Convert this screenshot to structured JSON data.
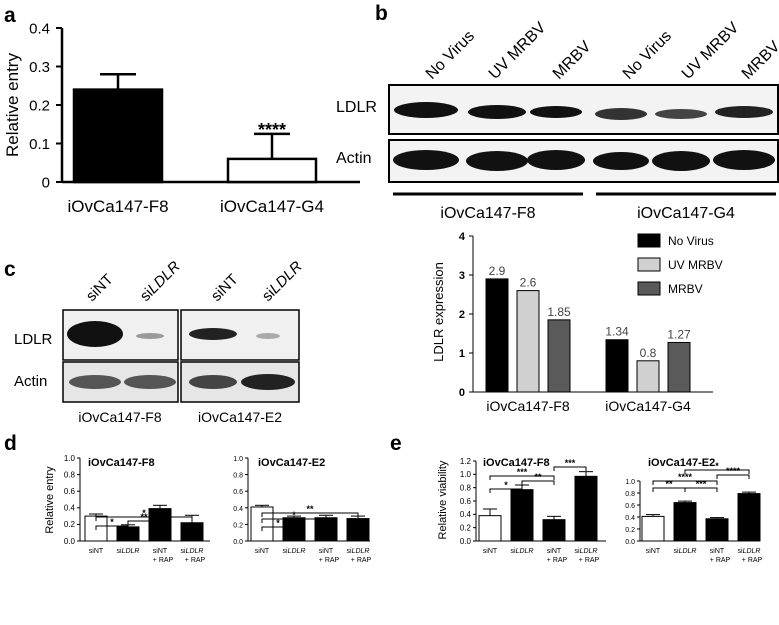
{
  "panels": {
    "a": {
      "letter": "a"
    },
    "b": {
      "letter": "b"
    },
    "c": {
      "letter": "c"
    },
    "d": {
      "letter": "d"
    },
    "e": {
      "letter": "e"
    }
  },
  "western_b": {
    "lanes": [
      "No Virus",
      "UV MRBV",
      "MRBV",
      "No Virus",
      "UV MRBV",
      "MRBV"
    ],
    "rows": [
      "LDLR",
      "Actin"
    ],
    "groups": [
      "iOvCa147-F8",
      "iOvCa147-G4"
    ]
  },
  "western_c": {
    "lanes": [
      "siNT",
      "si",
      "LDLR",
      "siNT",
      "si",
      "LDLR"
    ],
    "rows": [
      "LDLR",
      "Actin"
    ],
    "groups": [
      "iOvCa147-F8",
      "iOvCa147-E2"
    ]
  },
  "chart_data": [
    {
      "id": "a",
      "type": "bar",
      "categories": [
        "iOvCa147-F8",
        "iOvCa147-G4"
      ],
      "values": [
        0.24,
        0.06
      ],
      "errors": [
        0.04,
        0.065
      ],
      "ylabel": "Relative entry",
      "ylim": [
        0,
        0.4
      ],
      "yticks": [
        "0",
        "0.1",
        "0.2",
        "0.3",
        "0.4"
      ],
      "fills": [
        "#000000",
        "#ffffff"
      ],
      "annotations": [
        "****"
      ]
    },
    {
      "id": "b2",
      "type": "bar",
      "categories": [
        "iOvCa147-F8",
        "iOvCa147-G4"
      ],
      "series": [
        {
          "name": "No Virus",
          "color": "#000000",
          "values": [
            2.9,
            1.34
          ],
          "labels": [
            "2.9",
            "1.34"
          ]
        },
        {
          "name": "UV MRBV",
          "color": "#d0d0d0",
          "values": [
            2.6,
            0.8
          ],
          "labels": [
            "2.6",
            "0.8"
          ]
        },
        {
          "name": "MRBV",
          "color": "#5a5a5a",
          "values": [
            1.85,
            1.27
          ],
          "labels": [
            "1.85",
            "1.27"
          ]
        }
      ],
      "ylabel": "LDLR expression",
      "ylim": [
        0,
        4
      ],
      "yticks": [
        "0",
        "1",
        "2",
        "3",
        "4"
      ],
      "legend": "top-right"
    },
    {
      "id": "d1",
      "type": "bar",
      "title": "iOvCa147-F8",
      "ylabel": "Relative entry",
      "categories": [
        [
          "siNT"
        ],
        [
          "si",
          "LDLR"
        ],
        [
          "siNT",
          "+ RAP"
        ],
        [
          "si",
          "LDLR",
          "+ RAP"
        ]
      ],
      "values": [
        0.3,
        0.17,
        0.39,
        0.22
      ],
      "errors": [
        0.025,
        0.025,
        0.04,
        0.09
      ],
      "fills": [
        "#ffffff",
        "#000000",
        "#000000",
        "#000000"
      ],
      "ylim": [
        0,
        1.0
      ],
      "yticks": [
        "0.0",
        "0.2",
        "0.4",
        "0.6",
        "0.8",
        "1.0"
      ],
      "annotations": [
        "*",
        "**",
        "*"
      ]
    },
    {
      "id": "d2",
      "type": "bar",
      "title": "iOvCa147-E2",
      "categories": [
        [
          "siNT"
        ],
        [
          "si",
          "LDLR"
        ],
        [
          "siNT",
          "+ RAP"
        ],
        [
          "si",
          "LDLR",
          "+ RAP"
        ]
      ],
      "values": [
        0.41,
        0.28,
        0.28,
        0.27
      ],
      "errors": [
        0.02,
        0.02,
        0.03,
        0.03
      ],
      "fills": [
        "#ffffff",
        "#000000",
        "#000000",
        "#000000"
      ],
      "ylim": [
        0,
        1.0
      ],
      "yticks": [
        "0.0",
        "0.2",
        "0.4",
        "0.6",
        "0.8",
        "1.0"
      ],
      "annotations": [
        "*",
        "*",
        "**"
      ]
    },
    {
      "id": "e1",
      "type": "bar",
      "title": "iOvCa147-F8",
      "ylabel": "Relative viability",
      "categories": [
        [
          "siNT"
        ],
        [
          "si",
          "LDLR"
        ],
        [
          "siNT",
          "+ RAP"
        ],
        [
          "si",
          "LDLR",
          "+ RAP"
        ]
      ],
      "values": [
        0.38,
        0.77,
        0.32,
        0.97
      ],
      "errors": [
        0.1,
        0.07,
        0.05,
        0.07
      ],
      "fills": [
        "#ffffff",
        "#000000",
        "#000000",
        "#000000"
      ],
      "ylim": [
        0,
        1.2
      ],
      "yticks": [
        "0.0",
        "0.2",
        "0.4",
        "0.6",
        "0.8",
        "1.0",
        "1.2"
      ],
      "annotations": [
        "*",
        "***",
        "**",
        "***"
      ]
    },
    {
      "id": "e2",
      "type": "bar",
      "title": "iOvCa147-E2",
      "categories": [
        [
          "siNT"
        ],
        [
          "si",
          "LDLR"
        ],
        [
          "siNT",
          "+ RAP"
        ],
        [
          "si",
          "LDLR",
          "+ RAP"
        ]
      ],
      "values": [
        0.41,
        0.64,
        0.37,
        0.79
      ],
      "errors": [
        0.03,
        0.025,
        0.02,
        0.025
      ],
      "fills": [
        "#ffffff",
        "#000000",
        "#000000",
        "#000000"
      ],
      "ylim": [
        0,
        1.0
      ],
      "yticks": [
        "0.0",
        "0.2",
        "0.4",
        "0.6",
        "0.8",
        "1.0"
      ],
      "annotations": [
        "**",
        "****",
        "***",
        "*",
        "****"
      ]
    }
  ]
}
